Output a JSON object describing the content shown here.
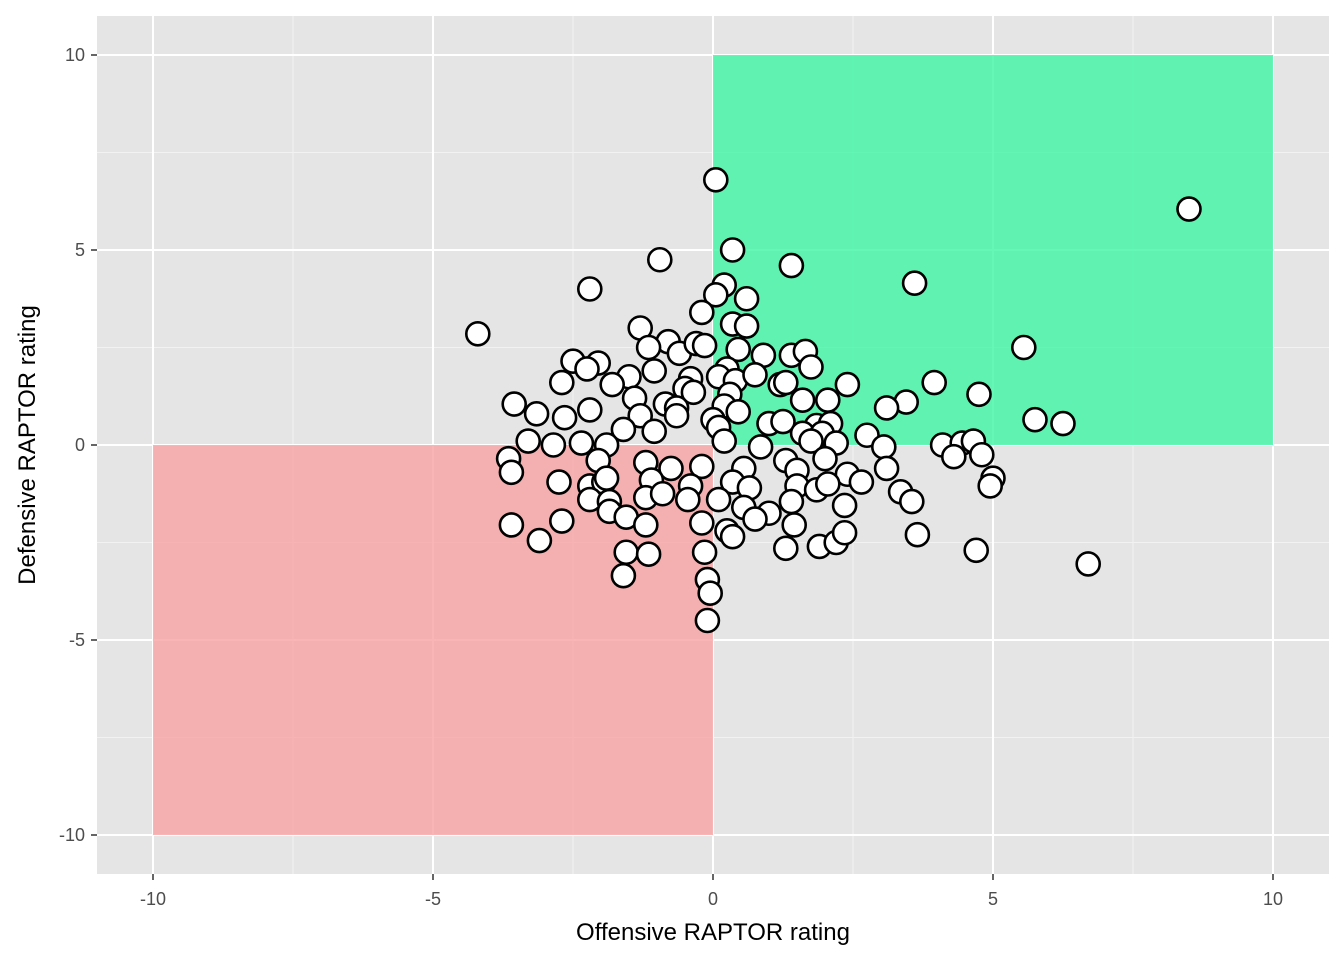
{
  "chart_data": {
    "type": "scatter",
    "title": "",
    "xlabel": "Offensive RAPTOR rating",
    "ylabel": "Defensive RAPTOR rating",
    "xlim": [
      -11,
      11
    ],
    "ylim": [
      -11,
      11
    ],
    "x_ticks": [
      -10,
      -5,
      0,
      5,
      10
    ],
    "y_ticks": [
      -10,
      -5,
      0,
      5,
      10
    ],
    "x_tick_labels": [
      "-10",
      "-5",
      "0",
      "5",
      "10"
    ],
    "y_tick_labels": [
      "-10",
      "-5",
      "0",
      "5",
      "10"
    ],
    "grid": true,
    "legend": "none",
    "colors": {
      "panel_background": "#e5e5e5",
      "grid_major": "#ffffff",
      "grid_minor": "#f2f2f2",
      "good_region": "#3df5a2",
      "bad_region": "#f7a3a3",
      "point_fill": "#ffffff",
      "point_stroke": "#000000"
    },
    "regions": [
      {
        "id": "good-region",
        "xmin": 0,
        "xmax": 10,
        "ymin": 0,
        "ymax": 10,
        "color": "#3df5a2",
        "opacity": 0.8
      },
      {
        "id": "bad-region",
        "xmin": -10,
        "xmax": 0,
        "ymin": -10,
        "ymax": 0,
        "color": "#f7a3a3",
        "opacity": 0.8
      }
    ],
    "points": [
      [
        8.5,
        6.05
      ],
      [
        0.05,
        6.8
      ],
      [
        -4.2,
        2.85
      ],
      [
        -2.2,
        4.0
      ],
      [
        -0.95,
        4.75
      ],
      [
        0.35,
        5.0
      ],
      [
        1.4,
        4.6
      ],
      [
        3.6,
        4.15
      ],
      [
        0.2,
        4.1
      ],
      [
        0.6,
        3.75
      ],
      [
        0.05,
        3.85
      ],
      [
        -0.2,
        3.4
      ],
      [
        0.35,
        3.1
      ],
      [
        0.6,
        3.05
      ],
      [
        -1.3,
        3.0
      ],
      [
        -0.8,
        2.65
      ],
      [
        -1.15,
        2.5
      ],
      [
        -0.6,
        2.35
      ],
      [
        -0.3,
        2.6
      ],
      [
        -0.15,
        2.55
      ],
      [
        0.45,
        2.45
      ],
      [
        0.9,
        2.3
      ],
      [
        1.4,
        2.3
      ],
      [
        1.65,
        2.4
      ],
      [
        1.75,
        2.0
      ],
      [
        -2.5,
        2.15
      ],
      [
        -2.05,
        2.1
      ],
      [
        -2.25,
        1.95
      ],
      [
        -1.5,
        1.75
      ],
      [
        -1.05,
        1.9
      ],
      [
        0.25,
        1.95
      ],
      [
        -0.4,
        1.7
      ],
      [
        0.1,
        1.75
      ],
      [
        0.4,
        1.65
      ],
      [
        0.75,
        1.8
      ],
      [
        1.2,
        1.55
      ],
      [
        1.3,
        1.6
      ],
      [
        2.4,
        1.55
      ],
      [
        -2.7,
        1.6
      ],
      [
        -1.8,
        1.55
      ],
      [
        -0.5,
        1.45
      ],
      [
        -0.35,
        1.35
      ],
      [
        0.3,
        1.3
      ],
      [
        2.05,
        1.15
      ],
      [
        3.95,
        1.6
      ],
      [
        5.55,
        2.5
      ],
      [
        4.75,
        1.3
      ],
      [
        -3.55,
        1.05
      ],
      [
        -1.4,
        1.2
      ],
      [
        -0.85,
        1.05
      ],
      [
        -0.65,
        0.95
      ],
      [
        0.2,
        1.0
      ],
      [
        1.6,
        1.15
      ],
      [
        3.45,
        1.1
      ],
      [
        3.1,
        0.95
      ],
      [
        5.75,
        0.65
      ],
      [
        6.25,
        0.55
      ],
      [
        -3.15,
        0.8
      ],
      [
        -2.65,
        0.7
      ],
      [
        -2.2,
        0.9
      ],
      [
        -1.3,
        0.75
      ],
      [
        -0.65,
        0.75
      ],
      [
        0.0,
        0.65
      ],
      [
        0.45,
        0.85
      ],
      [
        1.0,
        0.55
      ],
      [
        1.25,
        0.6
      ],
      [
        1.85,
        0.5
      ],
      [
        2.1,
        0.55
      ],
      [
        -1.6,
        0.4
      ],
      [
        -1.05,
        0.35
      ],
      [
        0.1,
        0.45
      ],
      [
        1.6,
        0.3
      ],
      [
        1.95,
        0.3
      ],
      [
        2.75,
        0.25
      ],
      [
        -3.3,
        0.1
      ],
      [
        -2.85,
        0.0
      ],
      [
        -2.35,
        0.05
      ],
      [
        -1.9,
        0.0
      ],
      [
        0.2,
        0.1
      ],
      [
        0.85,
        -0.05
      ],
      [
        1.75,
        0.1
      ],
      [
        2.2,
        0.05
      ],
      [
        3.05,
        -0.05
      ],
      [
        4.1,
        0.0
      ],
      [
        4.45,
        0.05
      ],
      [
        4.65,
        0.1
      ],
      [
        4.3,
        -0.3
      ],
      [
        4.8,
        -0.25
      ],
      [
        5.0,
        -0.85
      ],
      [
        -3.65,
        -0.35
      ],
      [
        -3.6,
        -0.7
      ],
      [
        -2.05,
        -0.4
      ],
      [
        -1.2,
        -0.45
      ],
      [
        -0.75,
        -0.6
      ],
      [
        -0.2,
        -0.55
      ],
      [
        0.55,
        -0.6
      ],
      [
        1.3,
        -0.4
      ],
      [
        1.5,
        -0.65
      ],
      [
        2.0,
        -0.35
      ],
      [
        2.4,
        -0.75
      ],
      [
        3.1,
        -0.6
      ],
      [
        -2.75,
        -0.95
      ],
      [
        -2.2,
        -1.05
      ],
      [
        -1.95,
        -0.95
      ],
      [
        -1.9,
        -0.85
      ],
      [
        -1.1,
        -0.9
      ],
      [
        -0.4,
        -1.05
      ],
      [
        0.35,
        -0.95
      ],
      [
        0.65,
        -1.1
      ],
      [
        1.5,
        -1.05
      ],
      [
        1.85,
        -1.15
      ],
      [
        2.05,
        -1.0
      ],
      [
        2.65,
        -0.95
      ],
      [
        3.35,
        -1.2
      ],
      [
        3.55,
        -1.45
      ],
      [
        4.95,
        -1.05
      ],
      [
        -2.2,
        -1.4
      ],
      [
        -1.85,
        -1.45
      ],
      [
        -1.2,
        -1.35
      ],
      [
        -0.9,
        -1.25
      ],
      [
        -0.45,
        -1.4
      ],
      [
        0.1,
        -1.4
      ],
      [
        0.55,
        -1.6
      ],
      [
        1.0,
        -1.75
      ],
      [
        1.4,
        -1.45
      ],
      [
        2.35,
        -1.55
      ],
      [
        -3.6,
        -2.05
      ],
      [
        -3.1,
        -2.45
      ],
      [
        -2.7,
        -1.95
      ],
      [
        -1.85,
        -1.7
      ],
      [
        -1.55,
        -1.85
      ],
      [
        -1.2,
        -2.05
      ],
      [
        -0.2,
        -2.0
      ],
      [
        0.25,
        -2.2
      ],
      [
        0.35,
        -2.35
      ],
      [
        0.75,
        -1.9
      ],
      [
        1.45,
        -2.05
      ],
      [
        1.3,
        -2.65
      ],
      [
        1.9,
        -2.6
      ],
      [
        2.2,
        -2.5
      ],
      [
        2.35,
        -2.25
      ],
      [
        3.65,
        -2.3
      ],
      [
        4.7,
        -2.7
      ],
      [
        6.7,
        -3.05
      ],
      [
        -1.55,
        -2.75
      ],
      [
        -1.6,
        -3.35
      ],
      [
        -1.15,
        -2.8
      ],
      [
        -0.15,
        -2.75
      ],
      [
        -0.1,
        -3.45
      ],
      [
        -0.05,
        -3.8
      ],
      [
        -0.1,
        -4.5
      ]
    ]
  }
}
